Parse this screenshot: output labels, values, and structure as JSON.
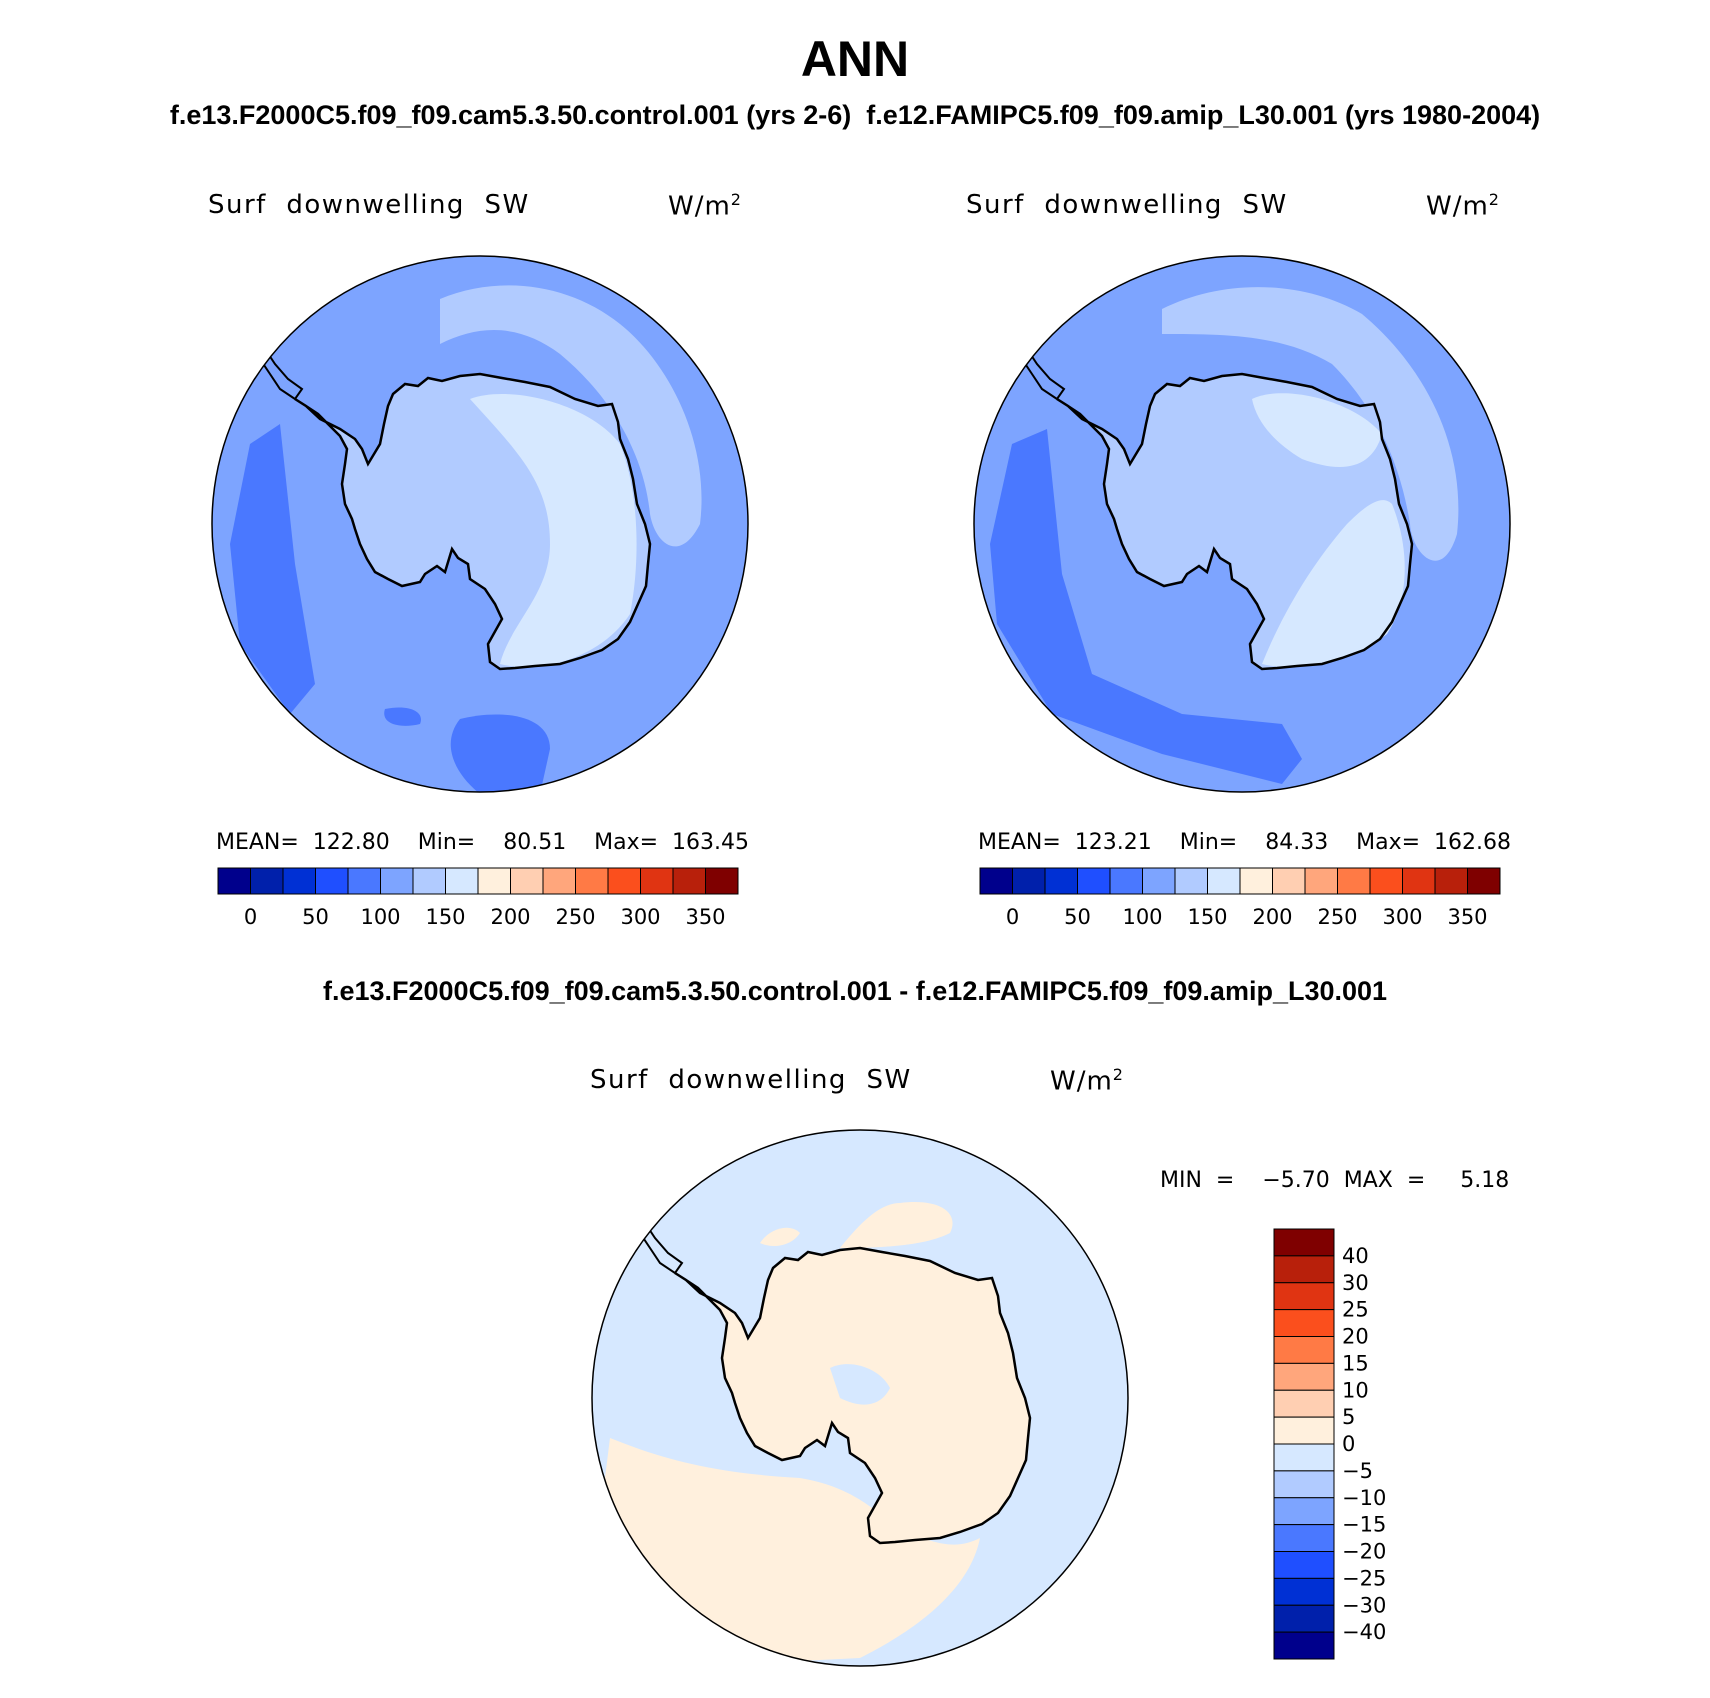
{
  "figure": {
    "title": "ANN",
    "subtitle": "f.e13.F2000C5.f09_f09.cam5.3.50.control.001 (yrs 2-6)  f.e12.FAMIPC5.f09_f09.amip_L30.001 (yrs 1980-2004)",
    "diff_title": "f.e13.F2000C5.f09_f09.cam5.3.50.control.001 - f.e12.FAMIPC5.f09_f09.amip_L30.001"
  },
  "panels": [
    {
      "label": "Surf  downwelling  SW",
      "unit": "W/m",
      "unit_sup": "2",
      "stats": "MEAN=  122.80    Min=    80.51    Max=  163.45"
    },
    {
      "label": "Surf  downwelling  SW",
      "unit": "W/m",
      "unit_sup": "2",
      "stats": "MEAN=  123.21    Min=    84.33    Max=  162.68"
    }
  ],
  "diff_panel": {
    "label": "Surf  downwelling  SW",
    "unit": "W/m",
    "unit_sup": "2",
    "minmax": "MIN  =    −5.70  MAX  =     5.18"
  },
  "colorbar_main": {
    "colors": [
      "#00008c",
      "#0020ab",
      "#0030d4",
      "#1f4fff",
      "#4a78ff",
      "#7da4ff",
      "#b1cbff",
      "#d6e8ff",
      "#fff0dd",
      "#ffcfb2",
      "#ffa67c",
      "#ff7a45",
      "#fb4f1d",
      "#e03412",
      "#b8200b",
      "#7f0000"
    ],
    "labels": [
      "0",
      "50",
      "100",
      "150",
      "200",
      "250",
      "300",
      "350"
    ]
  },
  "colorbar_diff": {
    "colors": [
      "#00008c",
      "#0020ab",
      "#0030d4",
      "#1f4fff",
      "#4a78ff",
      "#7da4ff",
      "#b1cbff",
      "#d6e8ff",
      "#fff0dd",
      "#ffcfb2",
      "#ffa67c",
      "#ff7a45",
      "#fb4f1d",
      "#e03412",
      "#b8200b",
      "#7f0000"
    ],
    "labels": [
      "−40",
      "−30",
      "−25",
      "−20",
      "−15",
      "−10",
      "−5",
      "0",
      "5",
      "10",
      "15",
      "20",
      "25",
      "30",
      "40"
    ]
  }
}
